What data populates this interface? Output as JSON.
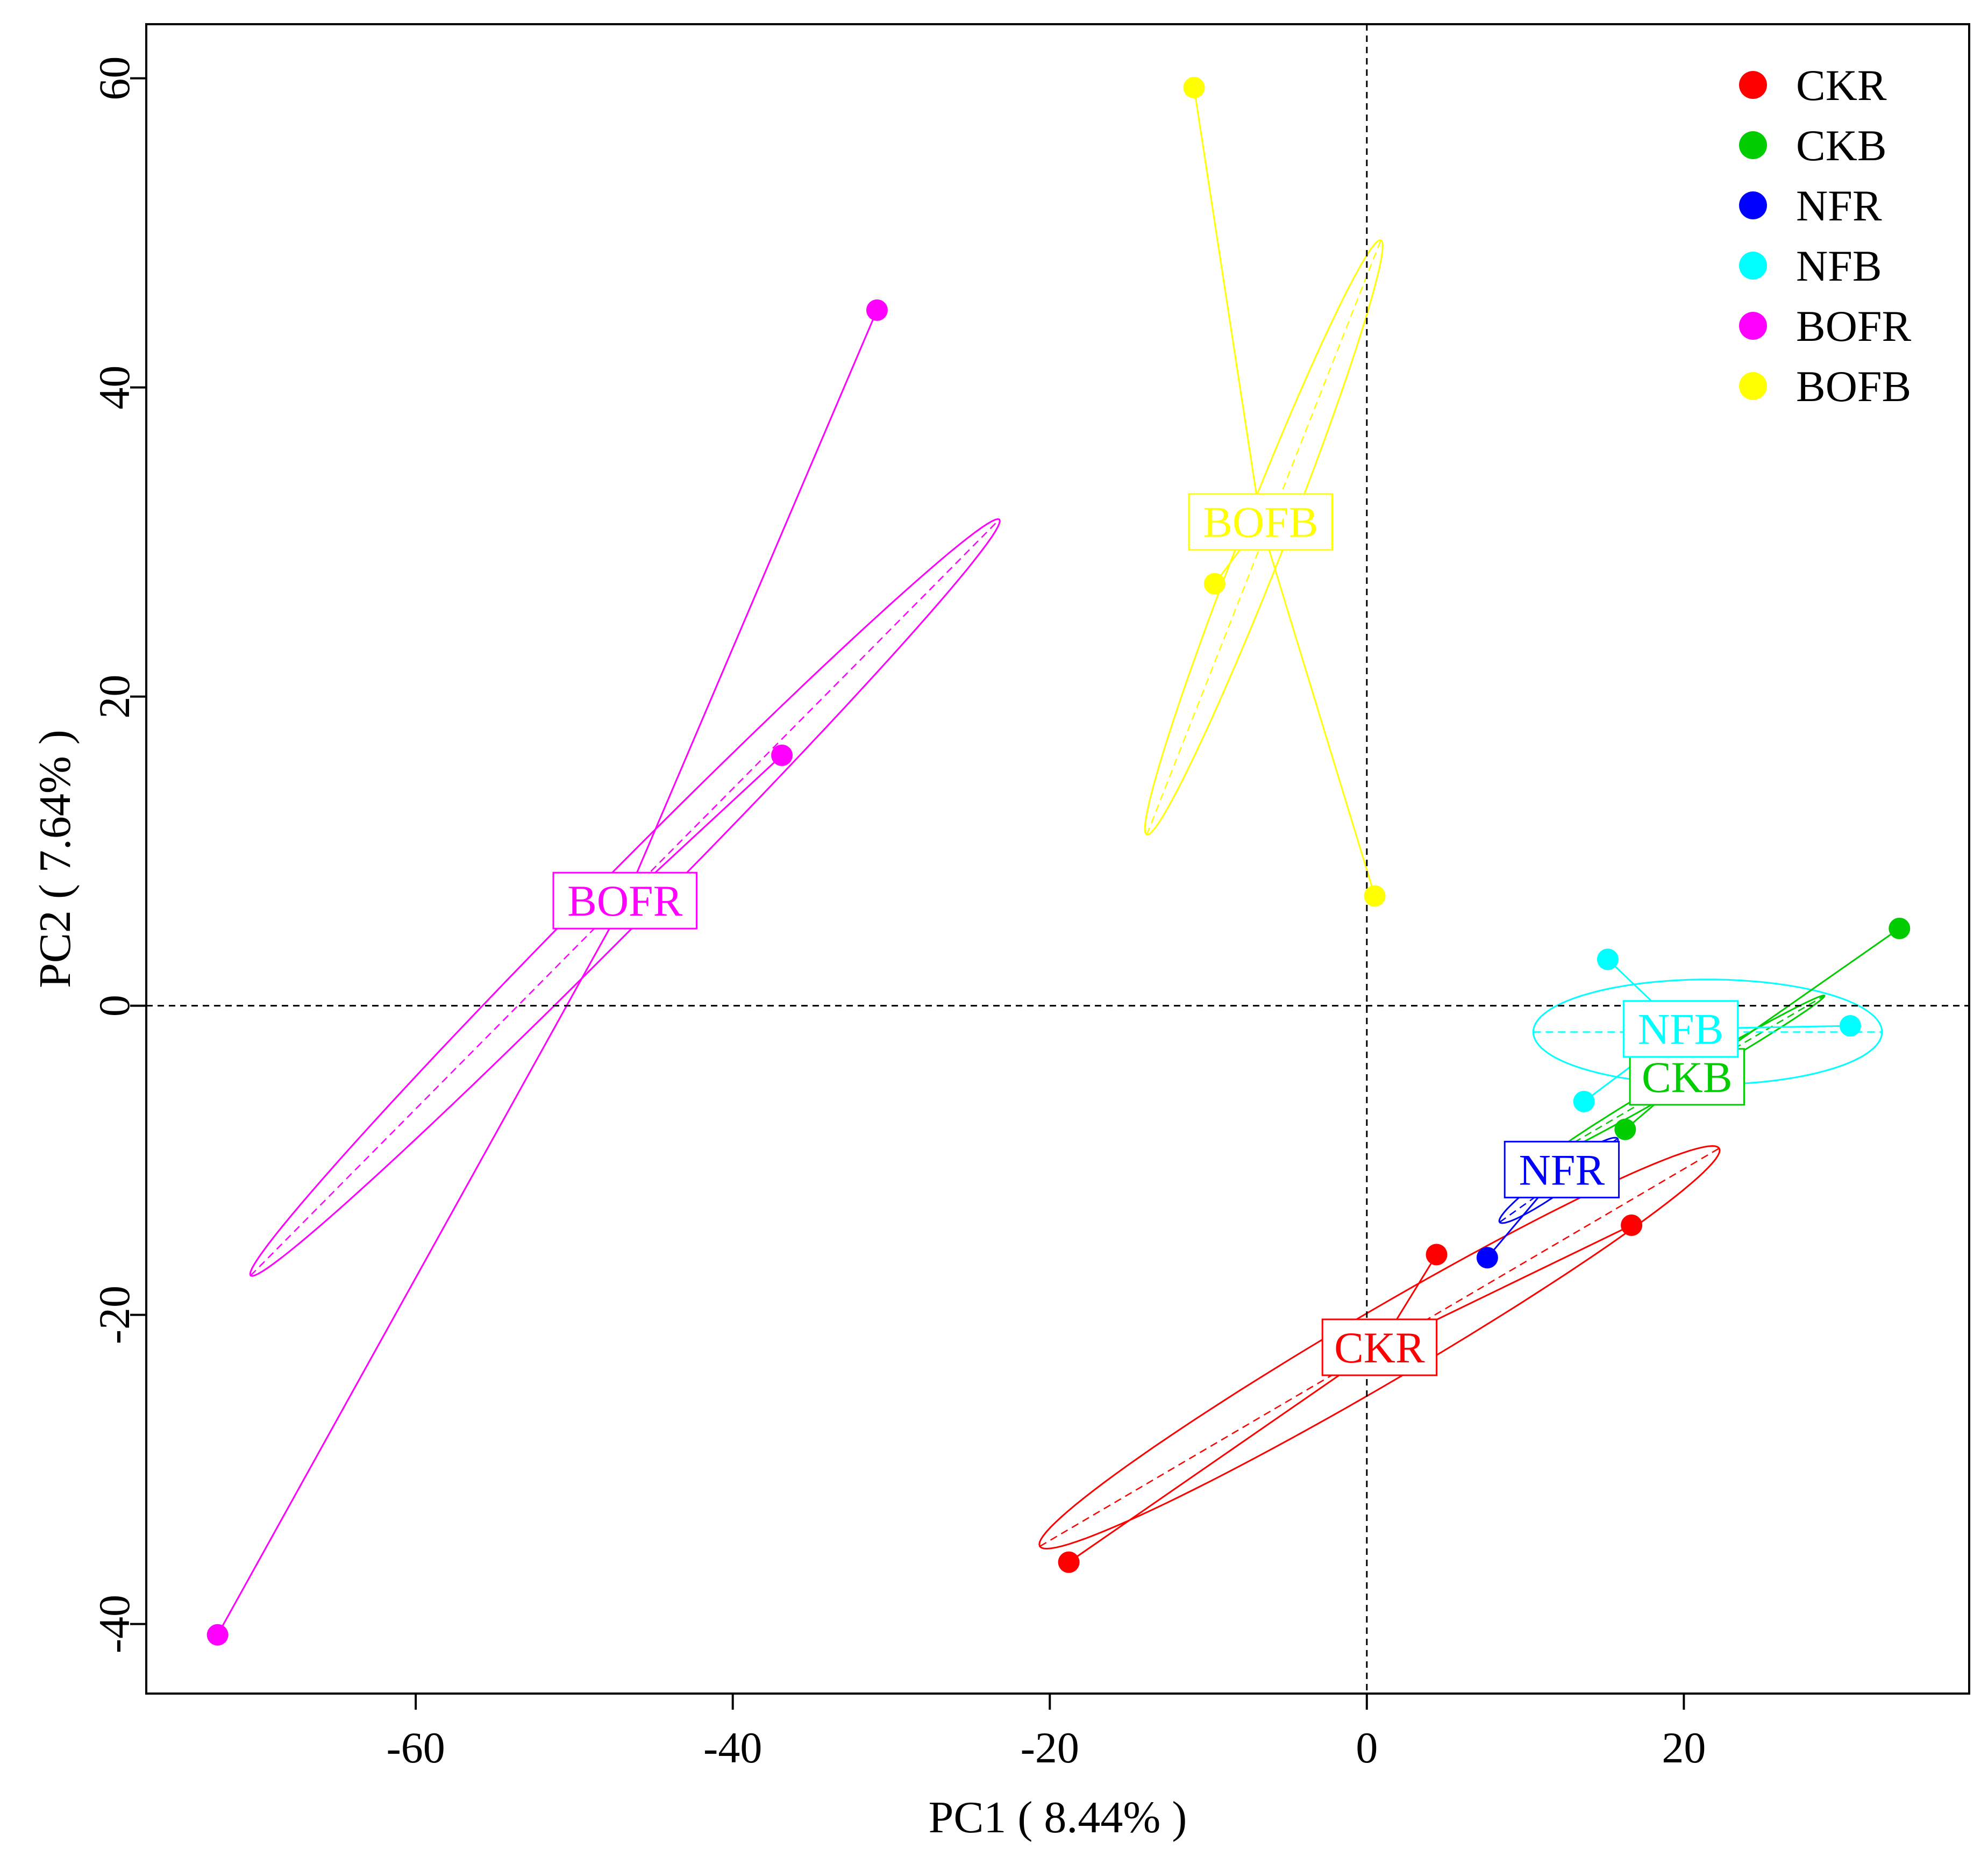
{
  "chart_data": {
    "type": "scatter",
    "title": "",
    "xlabel": "PC1 ( 8.44% )",
    "ylabel": "PC2 ( 7.64% )",
    "xlim": [
      -77,
      38
    ],
    "ylim": [
      -44.5,
      63.5
    ],
    "xticks": [
      -60,
      -40,
      -20,
      0,
      20
    ],
    "yticks": [
      -40,
      -20,
      0,
      20,
      40,
      60
    ],
    "xtick_labels": [
      "-60",
      "-40",
      "-20",
      "0",
      "20"
    ],
    "ytick_labels": [
      "-40",
      "-20",
      "0",
      "20",
      "40",
      "60"
    ],
    "reference_lines": {
      "x": 0,
      "y": 0,
      "style": "dashed"
    },
    "grid": false,
    "legend_position": "top-right",
    "series": [
      {
        "name": "CKR",
        "color": "#ff0000",
        "points": [
          [
            -18.8,
            -36.0
          ],
          [
            4.4,
            -16.1
          ],
          [
            16.7,
            -14.2
          ]
        ],
        "centroid": [
          0.8,
          -22.1
        ],
        "ellipse": {
          "cx": 0.8,
          "cy": -22.1,
          "a": 25.0,
          "b": 2.3,
          "angle_deg": 31
        }
      },
      {
        "name": "CKB",
        "color": "#00cc00",
        "points": [
          [
            33.6,
            5.0
          ],
          [
            16.3,
            -8.0
          ]
        ],
        "centroid": [
          20.2,
          -4.6
        ],
        "ellipse": {
          "cx": 20.3,
          "cy": -4.5,
          "a": 10.0,
          "b": 0.45,
          "angle_deg": 31
        }
      },
      {
        "name": "NFR",
        "color": "#0000ff",
        "points": [
          [
            7.6,
            -16.3
          ]
        ],
        "centroid": [
          12.3,
          -10.6
        ],
        "ellipse": {
          "cx": 12.1,
          "cy": -11.3,
          "a": 4.6,
          "b": 0.7,
          "angle_deg": 36
        }
      },
      {
        "name": "NFB",
        "color": "#00ffff",
        "points": [
          [
            15.2,
            3.0
          ],
          [
            13.7,
            -6.2
          ],
          [
            30.5,
            -1.3
          ]
        ],
        "centroid": [
          19.8,
          -1.5
        ],
        "ellipse": {
          "cx": 21.5,
          "cy": -1.7,
          "a": 11.0,
          "b": 3.4,
          "angle_deg": 0
        }
      },
      {
        "name": "BOFR",
        "color": "#ff00ff",
        "points": [
          [
            -30.9,
            45.0
          ],
          [
            -36.9,
            16.2
          ],
          [
            -72.5,
            -40.7
          ]
        ],
        "centroid": [
          -46.8,
          6.8
        ],
        "ellipse": {
          "cx": -46.8,
          "cy": 7.0,
          "a": 34.0,
          "b": 1.7,
          "angle_deg": 46
        }
      },
      {
        "name": "BOFB",
        "color": "#ffff00",
        "points": [
          [
            -10.9,
            59.4
          ],
          [
            -9.6,
            27.3
          ],
          [
            0.5,
            7.1
          ]
        ],
        "centroid": [
          -6.7,
          31.3
        ],
        "ellipse": {
          "cx": -6.5,
          "cy": 30.3,
          "a": 20.6,
          "b": 1.4,
          "angle_deg": 69
        }
      }
    ],
    "group_labels": [
      "CKR",
      "CKB",
      "NFR",
      "NFB",
      "BOFR",
      "BOFB"
    ]
  }
}
